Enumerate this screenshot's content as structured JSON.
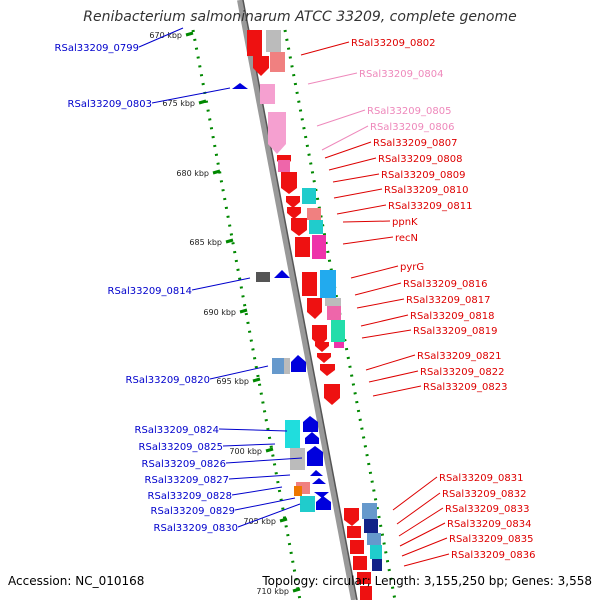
{
  "title": "Renibacterium salmoninarum ATCC 33209, complete genome",
  "accession_label": "Accession: NC_010168",
  "topology_label": "Topology: circular; Length: 3,155,250 bp; Genes: 3,558",
  "colors": {
    "reverse_label": "#0000cc",
    "forward_label": "#dd0000",
    "forward_label_faint": "#ee88bb",
    "backbone": "#888888",
    "ticks": "#008800"
  },
  "ticks": [
    "670 kbp",
    "675 kbp",
    "680 kbp",
    "685 kbp",
    "690 kbp",
    "695 kbp",
    "700 kbp",
    "705 kbp",
    "710 kbp"
  ],
  "reverse_genes": [
    "RSal33209_0799",
    "RSal33209_0803",
    "RSal33209_0814",
    "RSal33209_0820",
    "RSal33209_0824",
    "RSal33209_0825",
    "RSal33209_0826",
    "RSal33209_0827",
    "RSal33209_0828",
    "RSal33209_0829",
    "RSal33209_0830"
  ],
  "forward_genes": [
    "RSal33209_0802",
    "RSal33209_0804",
    "RSal33209_0805",
    "RSal33209_0806",
    "RSal33209_0807",
    "RSal33209_0808",
    "RSal33209_0809",
    "RSal33209_0810",
    "RSal33209_0811",
    "ppnK",
    "recN",
    "pyrG",
    "RSal33209_0816",
    "RSal33209_0817",
    "RSal33209_0818",
    "RSal33209_0819",
    "RSal33209_0821",
    "RSal33209_0822",
    "RSal33209_0823",
    "RSal33209_0831",
    "RSal33209_0832",
    "RSal33209_0833",
    "RSal33209_0834",
    "RSal33209_0835",
    "RSal33209_0836"
  ]
}
